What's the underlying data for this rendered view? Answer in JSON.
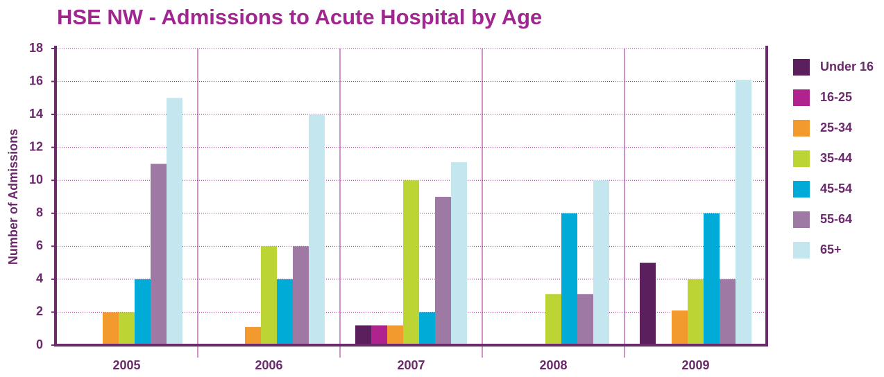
{
  "chart_data": {
    "type": "bar",
    "title": "HSE NW - Admissions to Acute Hospital by Age",
    "y_label": "Number of Admissions",
    "categories": [
      "2005",
      "2006",
      "2007",
      "2008",
      "2009"
    ],
    "series": [
      {
        "name": "Under 16",
        "color": "#5c1f5e",
        "values": [
          0,
          0,
          1.2,
          0,
          5
        ]
      },
      {
        "name": "16-25",
        "color": "#b0238f",
        "values": [
          0,
          0,
          1.2,
          0,
          0
        ]
      },
      {
        "name": "25-34",
        "color": "#f39a2e",
        "values": [
          2,
          1.1,
          1.2,
          0,
          2.1
        ]
      },
      {
        "name": "35-44",
        "color": "#bcd434",
        "values": [
          2,
          6,
          10,
          3.1,
          4
        ]
      },
      {
        "name": "45-54",
        "color": "#00acd7",
        "values": [
          4,
          4,
          2,
          8,
          8
        ]
      },
      {
        "name": "55-64",
        "color": "#9d79a3",
        "values": [
          11,
          6,
          9,
          3.1,
          4
        ]
      },
      {
        "name": "65+",
        "color": "#c4e6ef",
        "values": [
          15,
          14,
          11.1,
          10,
          16.1
        ]
      }
    ],
    "ylim": [
      0,
      18
    ],
    "yticks": [
      0,
      2,
      4,
      6,
      8,
      10,
      12,
      14,
      16,
      18
    ],
    "grid": true,
    "legend": "right"
  }
}
